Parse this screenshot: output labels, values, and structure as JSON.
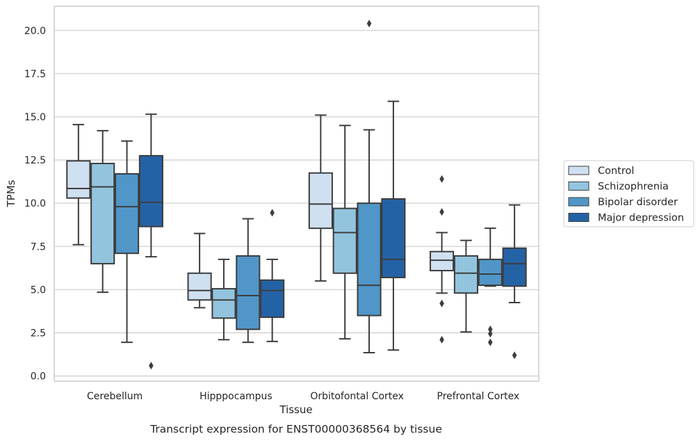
{
  "chart_data": {
    "type": "box",
    "title": "",
    "caption": "Transcript expression for ENST00000368564 by tissue",
    "xlabel": "Tissue",
    "ylabel": "TPMs",
    "ylim": [
      -0.3,
      21.4
    ],
    "yticks": [
      0.0,
      2.5,
      5.0,
      7.5,
      10.0,
      12.5,
      15.0,
      17.5,
      20.0
    ],
    "ytick_labels": [
      "0.0",
      "2.5",
      "5.0",
      "7.5",
      "10.0",
      "12.5",
      "15.0",
      "17.5",
      "20.0"
    ],
    "grid": "horizontal",
    "legend_position": "right",
    "categories": [
      "Cerebellum",
      "Hipppocampus",
      "Orbitofontal Cortex",
      "Prefrontal Cortex"
    ],
    "series": [
      {
        "name": "Control",
        "color": "#cfe0f1",
        "boxes": [
          {
            "whislo": 7.6,
            "q1": 10.3,
            "med": 10.85,
            "q3": 12.45,
            "whishi": 14.55,
            "fliers": []
          },
          {
            "whislo": 3.95,
            "q1": 4.4,
            "med": 4.95,
            "q3": 5.95,
            "whishi": 8.25,
            "fliers": []
          },
          {
            "whislo": 5.5,
            "q1": 8.55,
            "med": 9.95,
            "q3": 11.75,
            "whishi": 15.1,
            "fliers": []
          },
          {
            "whislo": 4.8,
            "q1": 6.1,
            "med": 6.7,
            "q3": 7.2,
            "whishi": 8.3,
            "fliers": [
              2.1,
              4.2,
              9.5,
              11.4
            ]
          }
        ]
      },
      {
        "name": "Schizophrenia",
        "color": "#93c4de",
        "boxes": [
          {
            "whislo": 4.85,
            "q1": 6.5,
            "med": 10.95,
            "q3": 12.3,
            "whishi": 14.2,
            "fliers": []
          },
          {
            "whislo": 2.1,
            "q1": 3.35,
            "med": 4.4,
            "q3": 5.05,
            "whishi": 6.75,
            "fliers": []
          },
          {
            "whislo": 2.15,
            "q1": 5.95,
            "med": 8.3,
            "q3": 9.7,
            "whishi": 14.5,
            "fliers": []
          },
          {
            "whislo": 2.55,
            "q1": 4.8,
            "med": 5.95,
            "q3": 6.95,
            "whishi": 7.85,
            "fliers": []
          }
        ]
      },
      {
        "name": "Bipolar disorder",
        "color": "#5096c8",
        "boxes": [
          {
            "whislo": 1.95,
            "q1": 7.1,
            "med": 9.8,
            "q3": 11.7,
            "whishi": 13.6,
            "fliers": []
          },
          {
            "whislo": 1.95,
            "q1": 2.7,
            "med": 4.65,
            "q3": 6.95,
            "whishi": 9.1,
            "fliers": []
          },
          {
            "whislo": 1.35,
            "q1": 3.5,
            "med": 5.25,
            "q3": 10.0,
            "whishi": 14.25,
            "fliers": [
              20.4
            ]
          },
          {
            "whislo": 5.2,
            "q1": 5.25,
            "med": 5.9,
            "q3": 6.75,
            "whishi": 8.55,
            "fliers": [
              1.95,
              2.45,
              2.7
            ]
          }
        ]
      },
      {
        "name": "Major depression",
        "color": "#2462a6",
        "boxes": [
          {
            "whislo": 6.9,
            "q1": 8.65,
            "med": 10.05,
            "q3": 12.75,
            "whishi": 15.15,
            "fliers": [
              0.6
            ]
          },
          {
            "whislo": 2.0,
            "q1": 3.4,
            "med": 4.95,
            "q3": 5.55,
            "whishi": 6.75,
            "fliers": [
              9.45
            ]
          },
          {
            "whislo": 1.5,
            "q1": 5.7,
            "med": 6.75,
            "q3": 10.25,
            "whishi": 15.9,
            "fliers": []
          },
          {
            "whislo": 4.25,
            "q1": 5.2,
            "med": 6.5,
            "q3": 7.4,
            "whishi": 9.9,
            "fliers": [
              1.2
            ]
          }
        ]
      }
    ]
  }
}
